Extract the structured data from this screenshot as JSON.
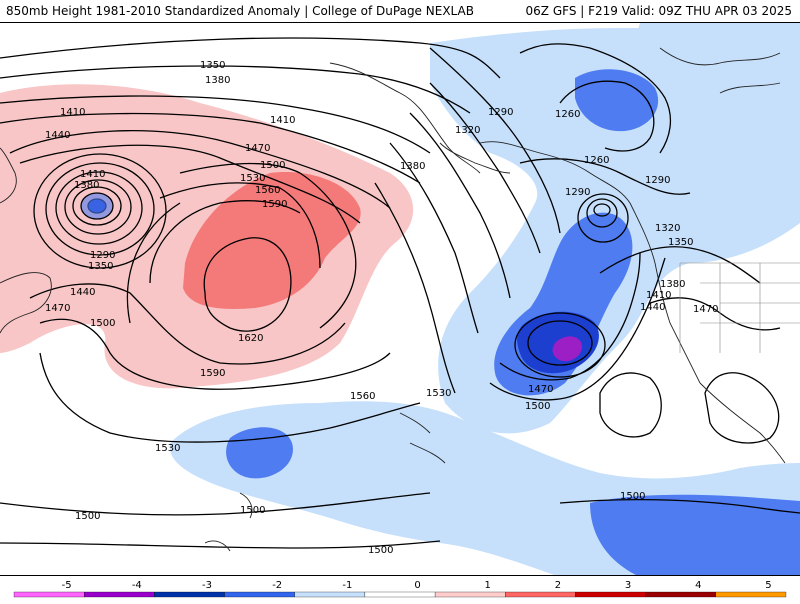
{
  "header": {
    "left_title": "850mb Height 1981-2010 Standardized Anomaly | College of DuPage NEXLAB",
    "right_title": "06Z GFS | F219 Valid: 09Z THU APR 03 2025"
  },
  "contour_labels": [
    "1350",
    "1380",
    "1410",
    "1440",
    "1410",
    "1470",
    "1500",
    "1530",
    "1560",
    "1590",
    "1410",
    "1380",
    "1290",
    "1350",
    "1440",
    "1470",
    "1500",
    "1620",
    "1590",
    "1560",
    "1530",
    "1530",
    "1500",
    "1500",
    "1500",
    "1500",
    "1320",
    "1290",
    "1260",
    "1260",
    "1290",
    "1380",
    "1290",
    "1320",
    "1350",
    "1380",
    "1410",
    "1440",
    "1470",
    "1470",
    "1500"
  ],
  "colorbar": {
    "labels": [
      "-5",
      "-4",
      "-3",
      "-2",
      "-1",
      "0",
      "1",
      "2",
      "3",
      "4",
      "5"
    ],
    "colors": [
      "#ff66ff",
      "#9900cc",
      "#0033aa",
      "#3366ee",
      "#c6e0fb",
      "#ffffff",
      "#ffcccc",
      "#ff6666",
      "#cc0000",
      "#990000",
      "#ff9900"
    ]
  },
  "anomaly_colors": {
    "neg1": "#c6e0fb",
    "neg2": "#4f7cf0",
    "neg3": "#1c3fd0",
    "neg4": "#9b1fc4",
    "pos1": "#f8c6c6",
    "pos2": "#f47a7a"
  }
}
